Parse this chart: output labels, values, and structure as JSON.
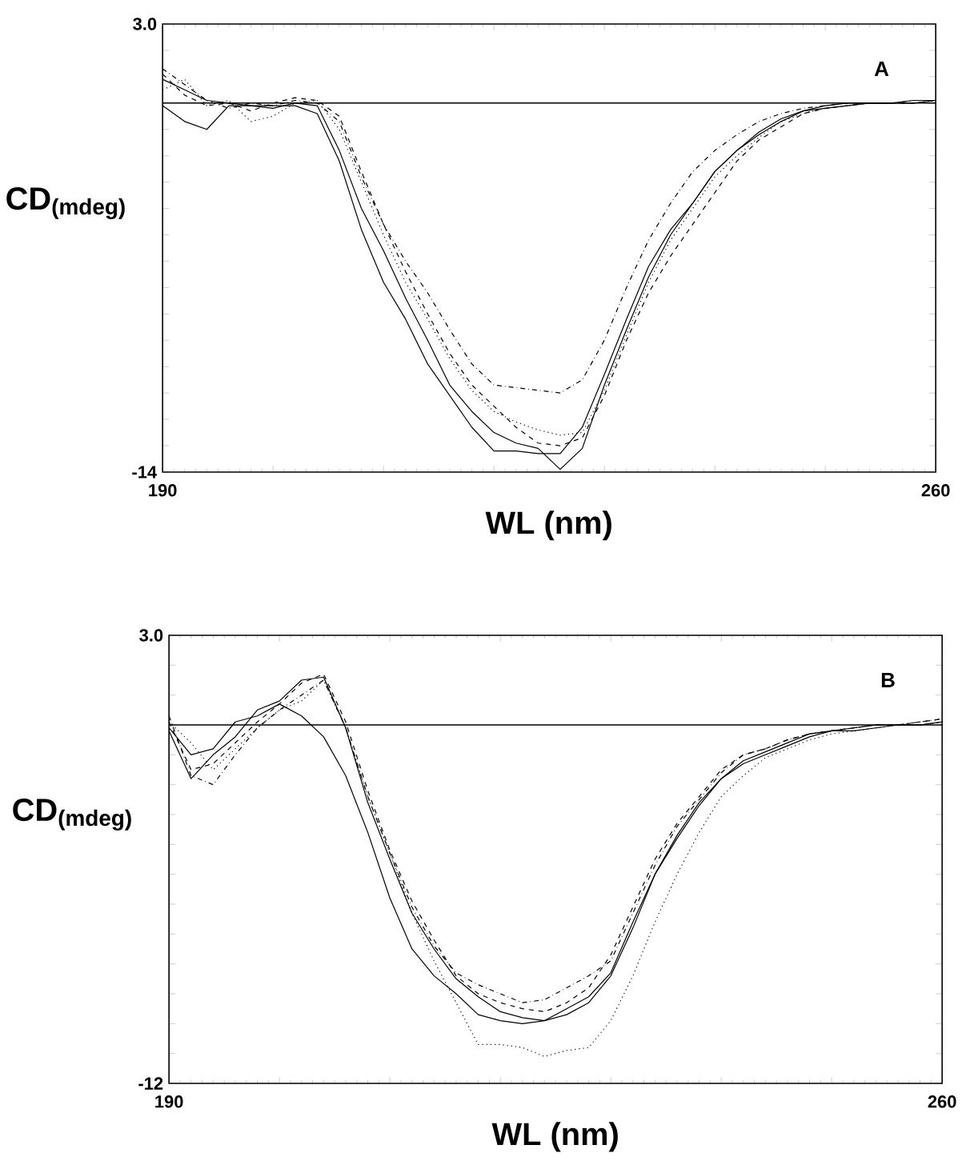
{
  "chart_data": [
    {
      "type": "line",
      "xlabel": "WL (nm)",
      "ylabel": "CD$_{(mdeg)}$",
      "annotations": [
        "A"
      ],
      "x": [
        190,
        192,
        194,
        196,
        198,
        200,
        202,
        204,
        206,
        208,
        210,
        212,
        214,
        216,
        218,
        220,
        222,
        224,
        226,
        228,
        230,
        232,
        234,
        236,
        238,
        240,
        242,
        244,
        246,
        248,
        250,
        252,
        254,
        256,
        258,
        260
      ],
      "xlim": [
        190,
        260
      ],
      "ylim": [
        -14,
        3
      ],
      "xticks": [
        190,
        {
          "value": 200,
          "label": null
        },
        {
          "value": 210,
          "label": null
        },
        {
          "value": 220,
          "label": null
        },
        {
          "value": 230,
          "label": null
        },
        {
          "value": 240,
          "label": null
        },
        {
          "value": 250,
          "label": null
        },
        260
      ],
      "yticks": [
        -14,
        {
          "value": -13,
          "label": null
        },
        {
          "value": -12,
          "label": null
        },
        {
          "value": -11,
          "label": null
        },
        {
          "value": -10,
          "label": null
        },
        {
          "value": -9,
          "label": null
        },
        {
          "value": -8,
          "label": null
        },
        {
          "value": -7,
          "label": null
        },
        {
          "value": -6,
          "label": null
        },
        {
          "value": -5,
          "label": null
        },
        {
          "value": -4,
          "label": null
        },
        {
          "value": -3,
          "label": null
        },
        {
          "value": -2,
          "label": null
        },
        {
          "value": -1,
          "label": null
        },
        {
          "value": 0,
          "label": null
        },
        {
          "value": 1,
          "label": null
        },
        {
          "value": 2,
          "label": null
        },
        {
          "value": 3,
          "label": "3.0"
        }
      ],
      "ref_lines": [
        {
          "axis": "y",
          "value": 0,
          "color": "#000000"
        }
      ],
      "series": [
        {
          "color": "#000000",
          "line_style": "solid",
          "values": [
            -0.1,
            -0.7,
            -1.0,
            -0.1,
            -0.1,
            -0.1,
            -0.1,
            -0.4,
            -2.2,
            -4.8,
            -6.8,
            -8.2,
            -9.9,
            -11.1,
            -12.3,
            -13.2,
            -13.2,
            -13.3,
            -13.3,
            -12.3,
            -10.3,
            -8.2,
            -6.2,
            -4.8,
            -3.8,
            -2.6,
            -1.8,
            -1.2,
            -0.7,
            -0.3,
            -0.2,
            -0.1,
            0,
            0,
            0,
            0.1
          ]
        },
        {
          "color": "#000000",
          "line_style": "solid",
          "values": [
            0.9,
            0.5,
            0.1,
            0,
            -0.1,
            -0.2,
            0,
            -0.1,
            -1.8,
            -4.0,
            -5.6,
            -7.4,
            -9.0,
            -10.7,
            -11.7,
            -12.5,
            -12.9,
            -13.1,
            -13.9,
            -13.1,
            -10.7,
            -8.6,
            -6.6,
            -5.0,
            -3.8,
            -2.6,
            -1.8,
            -1.1,
            -0.6,
            -0.3,
            -0.1,
            0,
            0,
            0,
            0.1,
            0.1
          ]
        },
        {
          "color": "#000000",
          "line_style": "dashed",
          "values": [
            1.1,
            0.3,
            -0.1,
            0,
            -0.3,
            0,
            0.2,
            0.1,
            -0.5,
            -2.6,
            -4.6,
            -6.4,
            -8.0,
            -9.5,
            -10.7,
            -11.5,
            -12.3,
            -12.9,
            -13.0,
            -12.7,
            -11.1,
            -9.0,
            -7.2,
            -5.8,
            -4.6,
            -3.4,
            -2.2,
            -1.4,
            -0.9,
            -0.4,
            -0.2,
            -0.1,
            0,
            0,
            0,
            0.1
          ]
        },
        {
          "color": "#000000",
          "line_style": "dashdot",
          "values": [
            1.3,
            0.7,
            0.1,
            -0.2,
            0,
            -0.1,
            0.1,
            0,
            -0.7,
            -2.8,
            -4.6,
            -6.0,
            -7.2,
            -8.6,
            -9.9,
            -10.7,
            -10.8,
            -10.9,
            -11.0,
            -10.5,
            -9.0,
            -7.0,
            -5.2,
            -3.8,
            -2.6,
            -1.8,
            -1.2,
            -0.7,
            -0.4,
            -0.2,
            -0.1,
            0,
            0,
            0,
            0.1,
            0.1
          ]
        },
        {
          "color": "#000000",
          "line_style": "dotted",
          "values": [
            0.5,
            0.9,
            -0.1,
            0.1,
            -0.7,
            -0.5,
            0,
            0.1,
            -1.0,
            -3.0,
            -5.0,
            -6.8,
            -8.2,
            -9.7,
            -10.9,
            -11.7,
            -12.1,
            -12.4,
            -12.6,
            -12.5,
            -10.9,
            -8.8,
            -6.8,
            -5.2,
            -4.0,
            -2.8,
            -2.0,
            -1.3,
            -0.7,
            -0.4,
            -0.2,
            -0.1,
            0,
            0,
            0,
            0.1
          ]
        }
      ]
    },
    {
      "type": "line",
      "xlabel": "WL (nm)",
      "ylabel": "CD$_{(mdeg)}$",
      "annotations": [
        "B"
      ],
      "x": [
        190,
        192,
        194,
        196,
        198,
        200,
        202,
        204,
        206,
        208,
        210,
        212,
        214,
        216,
        218,
        220,
        222,
        224,
        226,
        228,
        230,
        232,
        234,
        236,
        238,
        240,
        242,
        244,
        246,
        248,
        250,
        252,
        254,
        256,
        258,
        260
      ],
      "xlim": [
        190,
        260
      ],
      "ylim": [
        -12,
        3
      ],
      "xticks": [
        190,
        {
          "value": 200,
          "label": null
        },
        {
          "value": 210,
          "label": null
        },
        {
          "value": 220,
          "label": null
        },
        {
          "value": 230,
          "label": null
        },
        {
          "value": 240,
          "label": null
        },
        {
          "value": 250,
          "label": null
        },
        260
      ],
      "yticks": [
        -12,
        {
          "value": -11,
          "label": null
        },
        {
          "value": -10,
          "label": null
        },
        {
          "value": -9,
          "label": null
        },
        {
          "value": -8,
          "label": null
        },
        {
          "value": -7,
          "label": null
        },
        {
          "value": -6,
          "label": null
        },
        {
          "value": -5,
          "label": null
        },
        {
          "value": -4,
          "label": null
        },
        {
          "value": -3,
          "label": null
        },
        {
          "value": -2,
          "label": null
        },
        {
          "value": -1,
          "label": null
        },
        {
          "value": 0,
          "label": null
        },
        {
          "value": 1,
          "label": null
        },
        {
          "value": 2,
          "label": null
        },
        {
          "value": 3,
          "label": "3.0"
        }
      ],
      "ref_lines": [
        {
          "axis": "y",
          "value": 0,
          "color": "#000000"
        }
      ],
      "series": [
        {
          "color": "#000000",
          "line_style": "solid",
          "values": [
            -0.1,
            -1.0,
            -0.8,
            0.1,
            0.3,
            0.7,
            0.3,
            -0.4,
            -1.7,
            -3.6,
            -5.8,
            -7.5,
            -8.4,
            -9.0,
            -9.7,
            -9.9,
            -10.0,
            -9.9,
            -9.5,
            -9.1,
            -8.3,
            -6.6,
            -5.0,
            -3.8,
            -2.7,
            -1.8,
            -1.3,
            -1.0,
            -0.7,
            -0.4,
            -0.2,
            -0.2,
            -0.1,
            0,
            0,
            0.1
          ]
        },
        {
          "color": "#000000",
          "line_style": "dashed",
          "values": [
            0.1,
            -1.5,
            -1.3,
            -0.6,
            0.1,
            0.7,
            1.4,
            1.7,
            0.1,
            -2.2,
            -4.2,
            -5.9,
            -7.2,
            -8.4,
            -9.0,
            -9.3,
            -9.5,
            -9.6,
            -9.3,
            -8.8,
            -7.7,
            -6.1,
            -4.5,
            -3.3,
            -2.4,
            -1.5,
            -1.0,
            -0.8,
            -0.5,
            -0.3,
            -0.2,
            -0.1,
            0,
            0,
            0.1,
            0.2
          ]
        },
        {
          "color": "#000000",
          "line_style": "dashdot",
          "values": [
            0.3,
            -1.7,
            -2.0,
            -1.0,
            -0.1,
            0.5,
            1.0,
            1.5,
            -0.1,
            -2.4,
            -4.3,
            -6.1,
            -7.4,
            -8.3,
            -8.7,
            -9.0,
            -9.3,
            -9.2,
            -8.8,
            -8.4,
            -7.9,
            -6.3,
            -4.7,
            -3.4,
            -2.5,
            -1.6,
            -1.0,
            -0.8,
            -0.5,
            -0.3,
            -0.2,
            -0.1,
            0,
            0,
            0.1,
            0.2
          ]
        },
        {
          "color": "#000000",
          "line_style": "solid",
          "values": [
            -0.2,
            -1.8,
            -1.0,
            -0.4,
            0.5,
            0.8,
            1.5,
            1.6,
            -0.1,
            -2.6,
            -4.5,
            -6.3,
            -7.5,
            -8.5,
            -9.1,
            -9.6,
            -9.8,
            -9.9,
            -9.7,
            -9.3,
            -8.4,
            -6.8,
            -5.0,
            -3.7,
            -2.6,
            -1.8,
            -1.2,
            -0.9,
            -0.6,
            -0.3,
            -0.2,
            -0.1,
            0,
            0,
            0,
            0.1
          ]
        },
        {
          "color": "#000000",
          "line_style": "dotted",
          "values": [
            0.1,
            -0.6,
            -1.5,
            -0.8,
            -0.1,
            0.5,
            0.8,
            1.5,
            -0.1,
            -2.4,
            -4.3,
            -6.3,
            -7.9,
            -9.3,
            -10.7,
            -10.7,
            -10.8,
            -11.1,
            -10.9,
            -10.8,
            -9.9,
            -8.4,
            -6.6,
            -5.0,
            -3.6,
            -2.4,
            -1.7,
            -1.1,
            -0.8,
            -0.5,
            -0.3,
            -0.2,
            -0.1,
            0,
            0,
            0.1
          ]
        }
      ]
    }
  ]
}
